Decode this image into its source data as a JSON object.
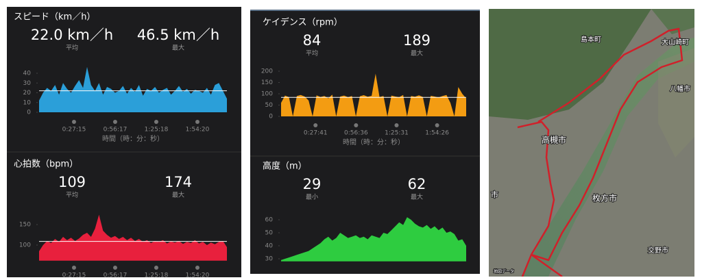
{
  "chart_data": [
    {
      "type": "area",
      "title": "スピード（km／h）",
      "stats": [
        {
          "value": "22.0 km／h",
          "label": "平均"
        },
        {
          "value": "46.5 km／h",
          "label": "最大"
        }
      ],
      "color": "#2b9fd9",
      "ylim": [
        0,
        48
      ],
      "yticks": [
        0,
        10,
        20,
        30,
        40
      ],
      "average": 22,
      "xtick_labels": [
        "0:27:15",
        "0:56:17",
        "1:25:18",
        "1:54:20"
      ],
      "xlabel": "時間（時：分：秒）",
      "values": [
        12,
        20,
        25,
        22,
        28,
        18,
        30,
        24,
        20,
        27,
        33,
        25,
        46.5,
        28,
        22,
        30,
        18,
        26,
        24,
        20,
        22,
        27,
        19,
        25,
        21,
        28,
        17,
        24,
        22,
        26,
        20,
        23,
        25,
        18,
        22,
        27,
        21,
        24,
        19,
        23,
        22,
        20,
        25,
        18,
        28,
        30,
        22,
        14
      ]
    },
    {
      "type": "area",
      "title": "心拍数（bpm）",
      "stats": [
        {
          "value": "109",
          "label": "平均"
        },
        {
          "value": "174",
          "label": "最大"
        }
      ],
      "color": "#e8203d",
      "ylim": [
        62,
        180
      ],
      "yticks": [
        100,
        150
      ],
      "average": 109,
      "xtick_labels": [
        "0:27:15",
        "0:56:17",
        "1:25:18",
        "1:54:20"
      ],
      "values": [
        85,
        100,
        110,
        105,
        115,
        108,
        120,
        112,
        118,
        110,
        116,
        125,
        130,
        120,
        140,
        174,
        135,
        125,
        118,
        122,
        115,
        120,
        112,
        118,
        110,
        115,
        108,
        112,
        105,
        110,
        108,
        112,
        104,
        109,
        106,
        110,
        103,
        108,
        105,
        112,
        104,
        108,
        100,
        106,
        102,
        108,
        110,
        95
      ]
    },
    {
      "type": "area",
      "title": "ケイデンス（rpm）",
      "stats": [
        {
          "value": "84",
          "label": "平均"
        },
        {
          "value": "189",
          "label": "最大"
        }
      ],
      "color": "#f39c12",
      "ylim": [
        0,
        210
      ],
      "yticks": [
        0,
        50,
        100,
        150,
        200
      ],
      "average": 84,
      "xtick_labels": [
        "0:27:41",
        "0:56:36",
        "1:25:31",
        "1:54:26"
      ],
      "xlabel": "時間（時：分：秒）",
      "values": [
        60,
        92,
        85,
        0,
        90,
        95,
        88,
        70,
        0,
        93,
        86,
        90,
        80,
        96,
        0,
        88,
        92,
        85,
        90,
        0,
        89,
        94,
        87,
        91,
        189,
        86,
        90,
        0,
        92,
        88,
        85,
        95,
        0,
        90,
        87,
        93,
        86,
        0,
        91,
        88,
        84,
        90,
        95,
        60,
        0,
        130,
        100,
        80
      ]
    },
    {
      "type": "area",
      "title": "高度（m）",
      "stats": [
        {
          "value": "29",
          "label": "最小"
        },
        {
          "value": "62",
          "label": "最大"
        }
      ],
      "color": "#2ecc40",
      "ylim": [
        28,
        64
      ],
      "yticks": [
        30,
        40,
        50,
        60
      ],
      "values": [
        29,
        30,
        31,
        32,
        33,
        34,
        35,
        36,
        38,
        40,
        42,
        45,
        47,
        44,
        46,
        50,
        48,
        46,
        47,
        48,
        46,
        47,
        45,
        48,
        47,
        46,
        50,
        49,
        52,
        55,
        58,
        56,
        62,
        60,
        57,
        55,
        54,
        56,
        53,
        55,
        52,
        54,
        50,
        51,
        49,
        44,
        45,
        40
      ]
    }
  ],
  "map": {
    "labels": [
      "島本町",
      "大山崎町",
      "八幡市",
      "高槻市",
      "枚方市",
      "交野市",
      "市",
      "地図データ"
    ]
  }
}
